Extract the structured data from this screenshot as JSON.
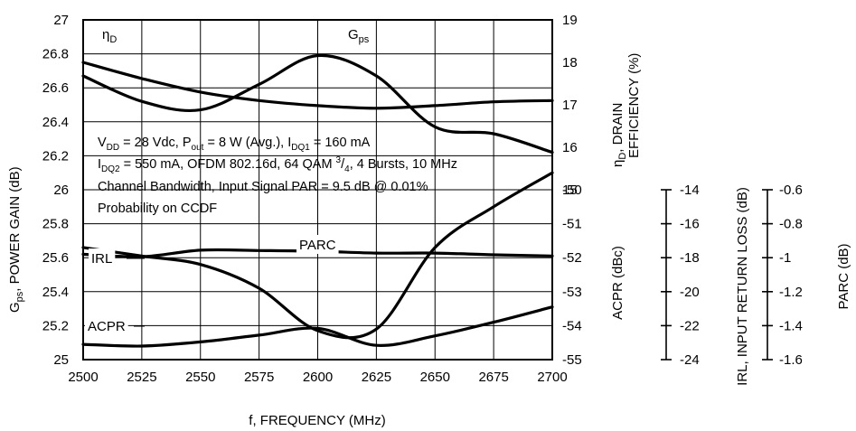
{
  "chart_data": {
    "type": "line",
    "title": "",
    "xlabel": "f, FREQUENCY (MHz)",
    "xlim": [
      2500,
      2700
    ],
    "x_ticks": [
      "2500",
      "2525",
      "2550",
      "2575",
      "2600",
      "2625",
      "2650",
      "2675",
      "2700"
    ],
    "left_axis": {
      "label_main": "G",
      "label_sub": "ps",
      "label_rest": ", POWER GAIN (dB)",
      "ylim": [
        25,
        27
      ],
      "ticks": [
        "27",
        "26.8",
        "26.6",
        "26.4",
        "26.2",
        "26",
        "25.8",
        "25.6",
        "25.4",
        "25.2",
        "25"
      ]
    },
    "right_axis_upper": {
      "label_line1_main": "η",
      "label_line1_sub": "D",
      "label_line1_rest": ", DRAIN",
      "label_line2": "EFFICIENCY (%)",
      "ylim": [
        15,
        19
      ],
      "ticks": [
        "19",
        "18",
        "17",
        "16",
        "15"
      ]
    },
    "right_axis_lower": {
      "label": "ACPR (dBc)",
      "ylim": [
        -55,
        -50
      ],
      "ticks": [
        "-50",
        "-51",
        "-52",
        "-53",
        "-54",
        "-55"
      ]
    },
    "irl_axis": {
      "label": "IRL, INPUT RETURN LOSS (dB)",
      "ylim": [
        -24,
        -14
      ],
      "ticks": [
        "-14",
        "-16",
        "-18",
        "-20",
        "-22",
        "-24"
      ]
    },
    "parc_axis": {
      "label": "PARC (dB)",
      "ylim": [
        -1.6,
        -0.6
      ],
      "ticks": [
        "-0.6",
        "-0.8",
        "-1",
        "-1.2",
        "-1.4",
        "-1.6"
      ]
    },
    "annotation": {
      "line1": {
        "p1": "V",
        "s1": "DD",
        "p2": " = 28 Vdc, P",
        "s2": "out",
        "p3": " = 8 W (Avg.), I",
        "s3": "DQ1",
        "p4": " = 160 mA"
      },
      "line2": {
        "p1": "I",
        "s1": "DQ2",
        "p2": " = 550 mA, OFDM 802.16d, 64 QAM ",
        "sup": "3",
        "p3": "/",
        "s3": "4",
        "p4": ", 4 Bursts, 10 MHz"
      },
      "line3": "Channel Bandwidth, Input Signal PAR = 9.5 dB @ 0.01%",
      "line4": "Probability on CCDF"
    },
    "series": [
      {
        "name": "ηD",
        "label_main": "η",
        "label_sub": "D",
        "axis": "right_upper",
        "x": [
          2500,
          2525,
          2550,
          2575,
          2600,
          2625,
          2650,
          2675,
          2700
        ],
        "y": [
          18.0,
          17.62,
          17.3,
          17.1,
          16.98,
          16.92,
          16.98,
          17.07,
          17.1
        ]
      },
      {
        "name": "Gps",
        "label_main": "G",
        "label_sub": "ps",
        "axis": "left",
        "x": [
          2500,
          2525,
          2550,
          2575,
          2600,
          2625,
          2650,
          2675,
          2700
        ],
        "y": [
          26.67,
          26.52,
          26.47,
          26.62,
          26.79,
          26.67,
          26.37,
          26.33,
          26.22
        ]
      },
      {
        "name": "PARC",
        "axis": "parc",
        "x": [
          2500,
          2525,
          2550,
          2575,
          2600,
          2625,
          2650,
          2675,
          2700
        ],
        "y": [
          -0.98,
          -0.994,
          -0.956,
          -0.958,
          -0.962,
          -0.973,
          -0.973,
          -0.983,
          -0.99
        ]
      },
      {
        "name": "IRL",
        "axis": "irl",
        "x": [
          2500,
          2525,
          2550,
          2575,
          2600,
          2625,
          2650,
          2675,
          2700
        ],
        "y": [
          -17.4,
          -17.9,
          -18.4,
          -19.8,
          -22.3,
          -22.2,
          -17.4,
          -15.0,
          -13.0
        ]
      },
      {
        "name": "ACPR",
        "axis": "right_lower",
        "x": [
          2500,
          2525,
          2550,
          2575,
          2600,
          2625,
          2650,
          2675,
          2700
        ],
        "y": [
          -54.55,
          -54.6,
          -54.48,
          -54.28,
          -54.08,
          -54.58,
          -54.3,
          -53.9,
          -53.45
        ]
      }
    ]
  }
}
